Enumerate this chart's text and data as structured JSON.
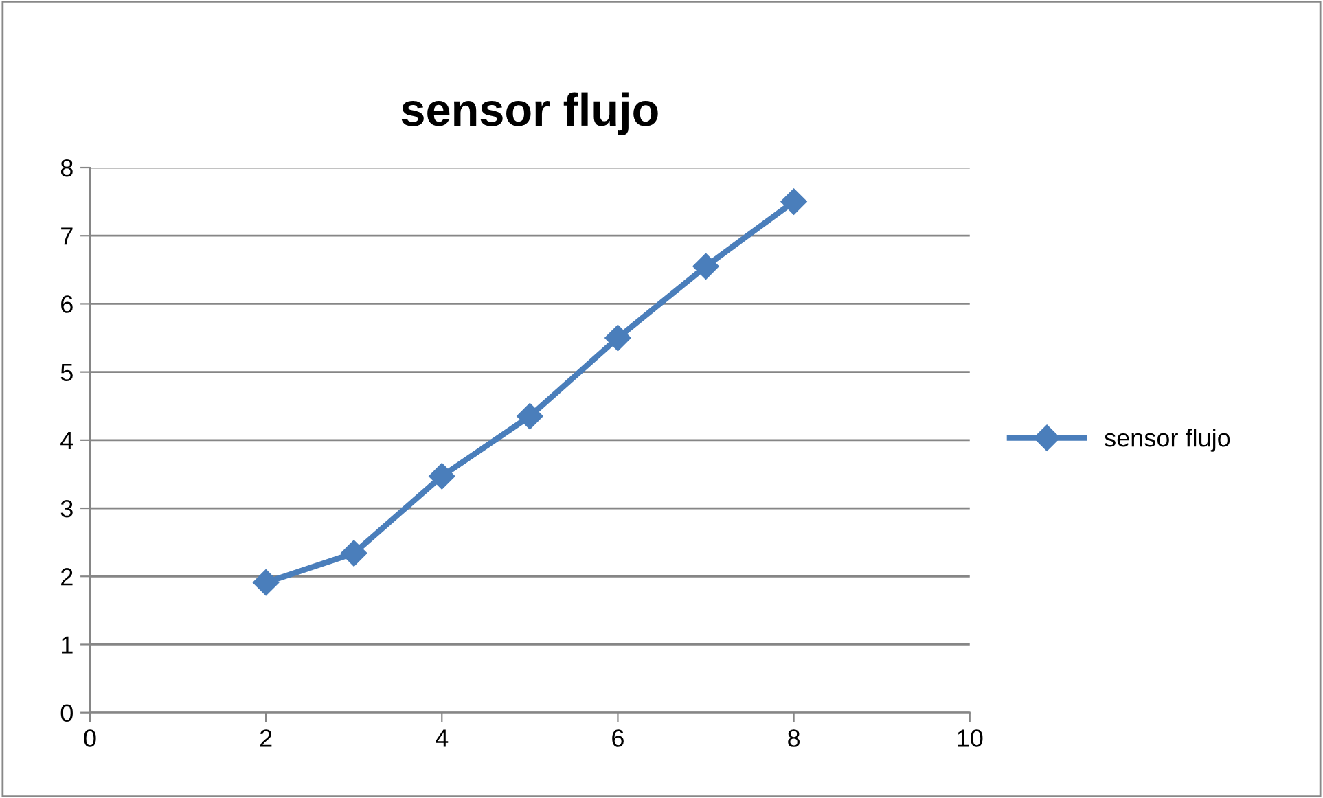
{
  "chart_data": {
    "type": "line",
    "title": "sensor flujo",
    "x": [
      2,
      3,
      4,
      5,
      6,
      7,
      8
    ],
    "series": [
      {
        "name": "sensor flujo",
        "color": "#4a7ebb",
        "values": [
          1.91,
          2.34,
          3.47,
          4.35,
          5.5,
          6.55,
          7.5
        ]
      }
    ],
    "xlim": [
      0,
      10
    ],
    "xticks": [
      0,
      2,
      4,
      6,
      8,
      10
    ],
    "ylim": [
      0,
      8
    ],
    "yticks": [
      0,
      1,
      2,
      3,
      4,
      5,
      6,
      7,
      8
    ],
    "grid": "y",
    "legend": "right",
    "marker": "diamond",
    "line_style": "solid"
  }
}
